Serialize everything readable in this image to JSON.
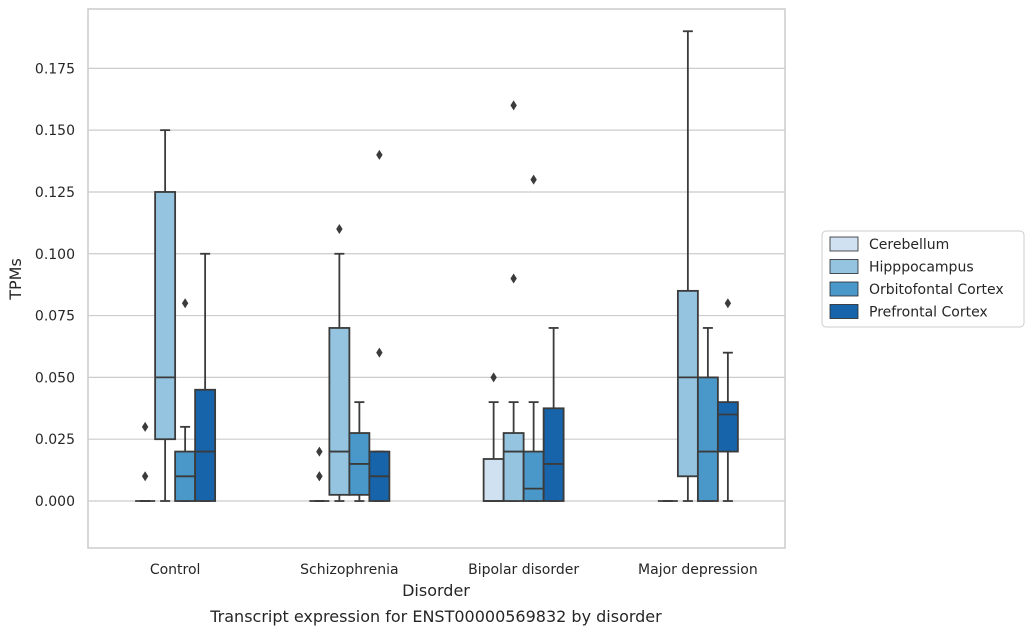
{
  "chart_data": {
    "type": "box",
    "xlabel": "Disorder",
    "ylabel": "TPMs",
    "caption": "Transcript expression for ENST00000569832 by disorder",
    "categories": [
      "Control",
      "Schizophrenia",
      "Bipolar disorder",
      "Major depression"
    ],
    "ylim": [
      -0.019,
      0.199
    ],
    "yticks": [
      "0.000",
      "0.025",
      "0.050",
      "0.075",
      "0.100",
      "0.125",
      "0.150",
      "0.175"
    ],
    "grid": true,
    "legend_position": "right",
    "series": [
      {
        "name": "Cerebellum",
        "color": "#d0e1f2",
        "boxes": [
          {
            "q1": 0,
            "median": 0,
            "q3": 0,
            "wlo": 0,
            "whi": 0,
            "outliers": [
              0.03,
              0.01
            ]
          },
          {
            "q1": 0,
            "median": 0,
            "q3": 0,
            "wlo": 0,
            "whi": 0,
            "outliers": [
              0.02,
              0.01,
              0.01
            ]
          },
          {
            "q1": 0,
            "median": 0,
            "q3": 0.017,
            "wlo": 0,
            "whi": 0.04,
            "outliers": [
              0.05
            ]
          },
          {
            "q1": 0,
            "median": 0,
            "q3": 0,
            "wlo": 0,
            "whi": 0,
            "outliers": []
          }
        ]
      },
      {
        "name": "Hipppocampus",
        "color": "#94c4df",
        "boxes": [
          {
            "q1": 0.025,
            "median": 0.05,
            "q3": 0.125,
            "wlo": 0,
            "whi": 0.15,
            "outliers": []
          },
          {
            "q1": 0.0025,
            "median": 0.02,
            "q3": 0.07,
            "wlo": 0,
            "whi": 0.1,
            "outliers": [
              0.11
            ]
          },
          {
            "q1": 0,
            "median": 0.02,
            "q3": 0.0275,
            "wlo": 0,
            "whi": 0.04,
            "outliers": [
              0.09,
              0.16
            ]
          },
          {
            "q1": 0.01,
            "median": 0.05,
            "q3": 0.085,
            "wlo": 0,
            "whi": 0.19,
            "outliers": []
          }
        ]
      },
      {
        "name": "Orbitofontal Cortex",
        "color": "#4a98c9",
        "boxes": [
          {
            "q1": 0,
            "median": 0.01,
            "q3": 0.02,
            "wlo": 0,
            "whi": 0.03,
            "outliers": [
              0.08
            ]
          },
          {
            "q1": 0.0025,
            "median": 0.015,
            "q3": 0.0275,
            "wlo": 0,
            "whi": 0.04,
            "outliers": []
          },
          {
            "q1": 0,
            "median": 0.005,
            "q3": 0.02,
            "wlo": 0,
            "whi": 0.04,
            "outliers": [
              0.13
            ]
          },
          {
            "q1": 0,
            "median": 0.02,
            "q3": 0.05,
            "wlo": 0,
            "whi": 0.07,
            "outliers": []
          }
        ]
      },
      {
        "name": "Prefrontal Cortex",
        "color": "#1764ab",
        "boxes": [
          {
            "q1": 0,
            "median": 0.02,
            "q3": 0.045,
            "wlo": 0,
            "whi": 0.1,
            "outliers": []
          },
          {
            "q1": 0,
            "median": 0.01,
            "q3": 0.02,
            "wlo": 0,
            "whi": 0.02,
            "outliers": [
              0.06,
              0.14
            ]
          },
          {
            "q1": 0,
            "median": 0.015,
            "q3": 0.0375,
            "wlo": 0,
            "whi": 0.07,
            "outliers": []
          },
          {
            "q1": 0.02,
            "median": 0.035,
            "q3": 0.04,
            "wlo": 0,
            "whi": 0.06,
            "outliers": [
              0.08
            ]
          }
        ]
      }
    ]
  }
}
